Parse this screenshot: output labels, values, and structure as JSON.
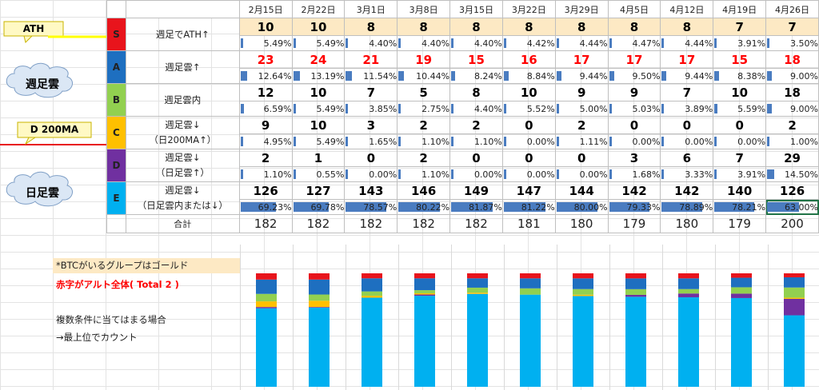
{
  "callouts": {
    "ath": "ATH",
    "weekly_cloud": "週足雲",
    "d200ma": "D 200MA",
    "daily_cloud": "日足雲"
  },
  "dates": [
    "2月15日",
    "2月22日",
    "3月1日",
    "3月8日",
    "3月15日",
    "3月22日",
    "3月29日",
    "4月5日",
    "4月12日",
    "4月19日",
    "4月26日"
  ],
  "groups": [
    {
      "grade": "S",
      "color": "#e8141c",
      "cond": [
        "週足でATH↑"
      ],
      "counts": [
        "10",
        "10",
        "8",
        "8",
        "8",
        "8",
        "8",
        "8",
        "8",
        "7",
        "7"
      ],
      "pcts": [
        "5.49%",
        "5.49%",
        "4.40%",
        "4.40%",
        "4.40%",
        "4.42%",
        "4.44%",
        "4.47%",
        "4.44%",
        "3.91%",
        "3.50%"
      ],
      "red": false
    },
    {
      "grade": "A",
      "color": "#1e6fc0",
      "cond": [
        "週足雲↑"
      ],
      "counts": [
        "23",
        "24",
        "21",
        "19",
        "15",
        "16",
        "17",
        "17",
        "17",
        "15",
        "18"
      ],
      "pcts": [
        "12.64%",
        "13.19%",
        "11.54%",
        "10.44%",
        "8.24%",
        "8.84%",
        "9.44%",
        "9.50%",
        "9.44%",
        "8.38%",
        "9.00%"
      ],
      "red": true
    },
    {
      "grade": "B",
      "color": "#92d050",
      "cond": [
        "週足雲内"
      ],
      "counts": [
        "12",
        "10",
        "7",
        "5",
        "8",
        "10",
        "9",
        "9",
        "7",
        "10",
        "18"
      ],
      "pcts": [
        "6.59%",
        "5.49%",
        "3.85%",
        "2.75%",
        "4.40%",
        "5.52%",
        "5.00%",
        "5.03%",
        "3.89%",
        "5.59%",
        "9.00%"
      ],
      "red": false
    },
    {
      "grade": "C",
      "color": "#ffc000",
      "cond": [
        "週足雲↓",
        "（日200MA↑）"
      ],
      "counts": [
        "9",
        "10",
        "3",
        "2",
        "2",
        "0",
        "2",
        "0",
        "0",
        "0",
        "2"
      ],
      "pcts": [
        "4.95%",
        "5.49%",
        "1.65%",
        "1.10%",
        "1.10%",
        "0.00%",
        "1.11%",
        "0.00%",
        "0.00%",
        "0.00%",
        "1.00%"
      ],
      "red": false
    },
    {
      "grade": "D",
      "color": "#7030a0",
      "cond": [
        "週足雲↓",
        "（日足雲↑）"
      ],
      "counts": [
        "2",
        "1",
        "0",
        "2",
        "0",
        "0",
        "0",
        "3",
        "6",
        "7",
        "29"
      ],
      "pcts": [
        "1.10%",
        "0.55%",
        "0.00%",
        "1.10%",
        "0.00%",
        "0.00%",
        "0.00%",
        "1.68%",
        "3.33%",
        "3.91%",
        "14.50%"
      ],
      "red": false
    },
    {
      "grade": "E",
      "color": "#00b0f0",
      "cond": [
        "週足雲↓",
        "（日足雲内または↓）"
      ],
      "counts": [
        "126",
        "127",
        "143",
        "146",
        "149",
        "147",
        "144",
        "142",
        "142",
        "140",
        "126"
      ],
      "pcts": [
        "69.23%",
        "69.78%",
        "78.57%",
        "80.22%",
        "81.87%",
        "81.22%",
        "80.00%",
        "79.33%",
        "78.89%",
        "78.21%",
        "63.00%"
      ],
      "red": false
    }
  ],
  "total_label": "合計",
  "totals": [
    "182",
    "182",
    "182",
    "182",
    "182",
    "181",
    "180",
    "179",
    "180",
    "179",
    "200"
  ],
  "notes": {
    "gold": "*BTCがいるグループはゴールド",
    "red": "赤字がアルト全体( Total 2 )",
    "multi1": "複数条件に当てはまる場合",
    "multi2": "→最上位でカウント"
  },
  "chart_data": {
    "type": "bar",
    "stacked": true,
    "categories": [
      "2月15日",
      "2月22日",
      "3月1日",
      "3月8日",
      "3月15日",
      "3月22日",
      "3月29日",
      "4月5日",
      "4月12日",
      "4月19日",
      "4月26日"
    ],
    "series": [
      {
        "name": "E",
        "color": "#00b0f0",
        "values": [
          69.23,
          69.78,
          78.57,
          80.22,
          81.87,
          81.22,
          80.0,
          79.33,
          78.89,
          78.21,
          63.0
        ]
      },
      {
        "name": "D",
        "color": "#7030a0",
        "values": [
          1.1,
          0.55,
          0.0,
          1.1,
          0.0,
          0.0,
          0.0,
          1.68,
          3.33,
          3.91,
          14.5
        ]
      },
      {
        "name": "C",
        "color": "#ffc000",
        "values": [
          4.95,
          5.49,
          1.65,
          1.1,
          1.1,
          0.0,
          1.11,
          0.0,
          0.0,
          0.0,
          1.0
        ]
      },
      {
        "name": "B",
        "color": "#92d050",
        "values": [
          6.59,
          5.49,
          3.85,
          2.75,
          4.4,
          5.52,
          5.0,
          5.03,
          3.89,
          5.59,
          9.0
        ]
      },
      {
        "name": "A",
        "color": "#1e6fc0",
        "values": [
          12.64,
          13.19,
          11.54,
          10.44,
          8.24,
          8.84,
          9.44,
          9.5,
          9.44,
          8.38,
          9.0
        ]
      },
      {
        "name": "S",
        "color": "#e8141c",
        "values": [
          5.49,
          5.49,
          4.4,
          4.4,
          4.4,
          4.42,
          4.44,
          4.47,
          4.44,
          3.91,
          3.5
        ]
      }
    ],
    "ylim": [
      0,
      100
    ],
    "grid": true
  }
}
